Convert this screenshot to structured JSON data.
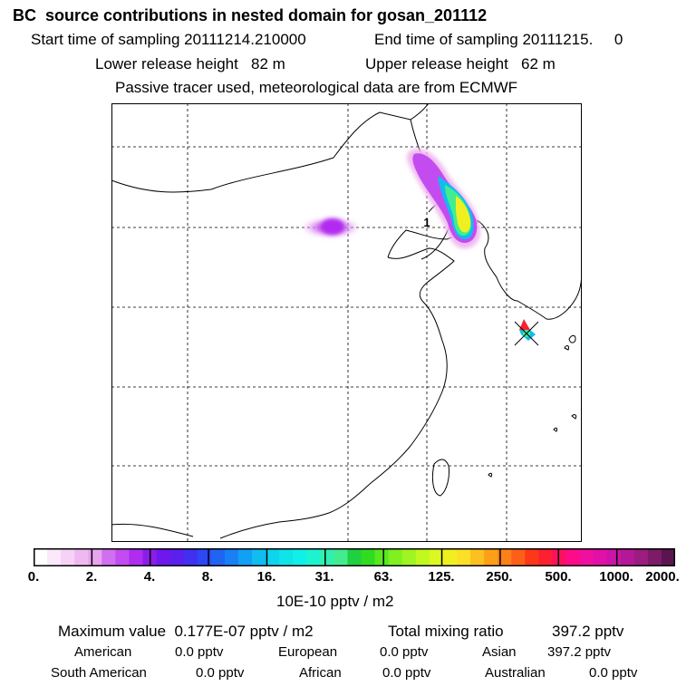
{
  "header": {
    "title": "BC  source contributions in nested domain for gosan_201112",
    "start_label": "Start time of sampling 20111214.210000",
    "end_label": "End time of sampling 20111215.     0",
    "lower_label": "Lower release height   82 m",
    "upper_label": "Upper release height   62 m",
    "tracer_note": "Passive tracer used, meteorological data are from ECMWF"
  },
  "map": {
    "marker_label": "1"
  },
  "chart_data": {
    "type": "heatmap",
    "title": "BC  source contributions in nested domain for gosan_201112",
    "colorbar": {
      "tick_labels": [
        "0.",
        "2.",
        "4.",
        "8.",
        "16.",
        "31.",
        "63.",
        "125.",
        "250.",
        "500.",
        "1000.",
        "2000."
      ],
      "units": "10E-10 pptv / m2",
      "colors": [
        "#ffffff",
        "#fbe8fb",
        "#f6d2f6",
        "#f0b8f0",
        "#e8a4ee",
        "#d070ee",
        "#c24cf0",
        "#b02cf0",
        "#8a1ee8",
        "#6e18ee",
        "#5c20ee",
        "#4030f0",
        "#2c48f4",
        "#2064f4",
        "#1880f4",
        "#10a0f4",
        "#10bcf0",
        "#0ed4ee",
        "#10e4e8",
        "#10f0e8",
        "#1cf4d0",
        "#30f0b0",
        "#44ec90",
        "#20d040",
        "#30dc20",
        "#58e820",
        "#80f020",
        "#a0f420",
        "#c0f820",
        "#dcf820",
        "#f0f020",
        "#fce028",
        "#fcc020",
        "#fca018",
        "#fc8018",
        "#fc6018",
        "#fc3818",
        "#fc2030",
        "#fc1060",
        "#fc0c88",
        "#f010a0",
        "#e010a8",
        "#cc14a8",
        "#b41898",
        "#9c1c80",
        "#7c1c68",
        "#5c1450"
      ]
    },
    "stats": {
      "max_label": "Maximum value  0.177E-07 pptv / m2",
      "total_label": "Total mixing ratio",
      "total_value": "397.2 pptv",
      "regions": [
        {
          "name": "American",
          "value": "0.0 pptv"
        },
        {
          "name": "European",
          "value": "0.0 pptv"
        },
        {
          "name": "Asian",
          "value": "397.2 pptv"
        },
        {
          "name": "South American",
          "value": "0.0 pptv"
        },
        {
          "name": "African",
          "value": "0.0 pptv"
        },
        {
          "name": "Australian",
          "value": "0.0 pptv"
        }
      ]
    }
  }
}
